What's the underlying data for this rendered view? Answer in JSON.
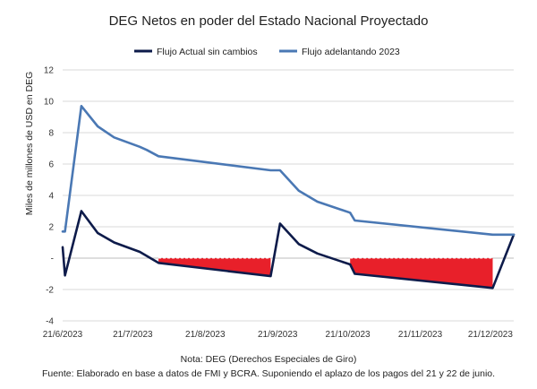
{
  "chart_data": {
    "type": "line",
    "title": "DEG Netos en poder del Estado Nacional Proyectado",
    "ylabel": "Miles de millones de USD en DEG",
    "xlabel": "",
    "ylim": [
      -4,
      12
    ],
    "yticks": [
      -4,
      -2,
      0,
      2,
      4,
      6,
      8,
      10,
      12
    ],
    "ytick_labels": [
      "-4",
      "-2",
      "-",
      "2",
      "4",
      "6",
      "8",
      "10",
      "12"
    ],
    "x_start": "2023-06-21",
    "x_end": "2023-12-31",
    "xticks": [
      "2023-06-21",
      "2023-07-21",
      "2023-08-21",
      "2023-09-21",
      "2023-10-21",
      "2023-11-21",
      "2023-12-21"
    ],
    "xtick_labels": [
      "21/6/2023",
      "21/7/2023",
      "21/8/2023",
      "21/9/2023",
      "21/10/2023",
      "21/11/2023",
      "21/12/2023"
    ],
    "legend_position": "top",
    "grid": {
      "y": true,
      "x": false
    },
    "series": [
      {
        "name": "Flujo Actual sin cambios",
        "color": "#0d1b4a",
        "points": [
          [
            "2023-06-21",
            0.7
          ],
          [
            "2023-06-22",
            -1.1
          ],
          [
            "2023-06-29",
            3.0
          ],
          [
            "2023-07-06",
            1.6
          ],
          [
            "2023-07-13",
            1.0
          ],
          [
            "2023-07-24",
            0.4
          ],
          [
            "2023-08-01",
            -0.3
          ],
          [
            "2023-09-18",
            -1.15
          ],
          [
            "2023-09-22",
            2.2
          ],
          [
            "2023-09-30",
            0.9
          ],
          [
            "2023-10-08",
            0.3
          ],
          [
            "2023-10-22",
            -0.4
          ],
          [
            "2023-10-24",
            -1.0
          ],
          [
            "2023-12-22",
            -1.9
          ],
          [
            "2023-12-31",
            1.5
          ]
        ]
      },
      {
        "name": "Flujo adelantando 2023",
        "color": "#4a78b4",
        "points": [
          [
            "2023-06-21",
            1.7
          ],
          [
            "2023-06-22",
            1.7
          ],
          [
            "2023-06-29",
            9.7
          ],
          [
            "2023-07-06",
            8.4
          ],
          [
            "2023-07-13",
            7.7
          ],
          [
            "2023-07-24",
            7.1
          ],
          [
            "2023-07-27",
            6.9
          ],
          [
            "2023-08-01",
            6.5
          ],
          [
            "2023-09-18",
            5.6
          ],
          [
            "2023-09-22",
            5.6
          ],
          [
            "2023-09-30",
            4.3
          ],
          [
            "2023-10-08",
            3.6
          ],
          [
            "2023-10-22",
            2.9
          ],
          [
            "2023-10-24",
            2.4
          ],
          [
            "2023-12-22",
            1.5
          ],
          [
            "2023-12-31",
            1.5
          ]
        ]
      }
    ],
    "shaded_regions": [
      {
        "color": "#e8202a",
        "points": [
          [
            "2023-08-01",
            0
          ],
          [
            "2023-09-18",
            0
          ],
          [
            "2023-09-18",
            -1.15
          ],
          [
            "2023-08-01",
            -0.3
          ]
        ]
      },
      {
        "color": "#e8202a",
        "points": [
          [
            "2023-10-22",
            0
          ],
          [
            "2023-12-22",
            0
          ],
          [
            "2023-12-22",
            -1.9
          ],
          [
            "2023-10-24",
            -1.0
          ],
          [
            "2023-10-22",
            -0.4
          ]
        ]
      }
    ],
    "notes": [
      "Nota: DEG (Derechos Especiales de Giro)",
      "Fuente:  Elaborado en base a datos de FMI y BCRA. Suponiendo el aplazo de los pagos del 21 y 22 de junio."
    ]
  }
}
